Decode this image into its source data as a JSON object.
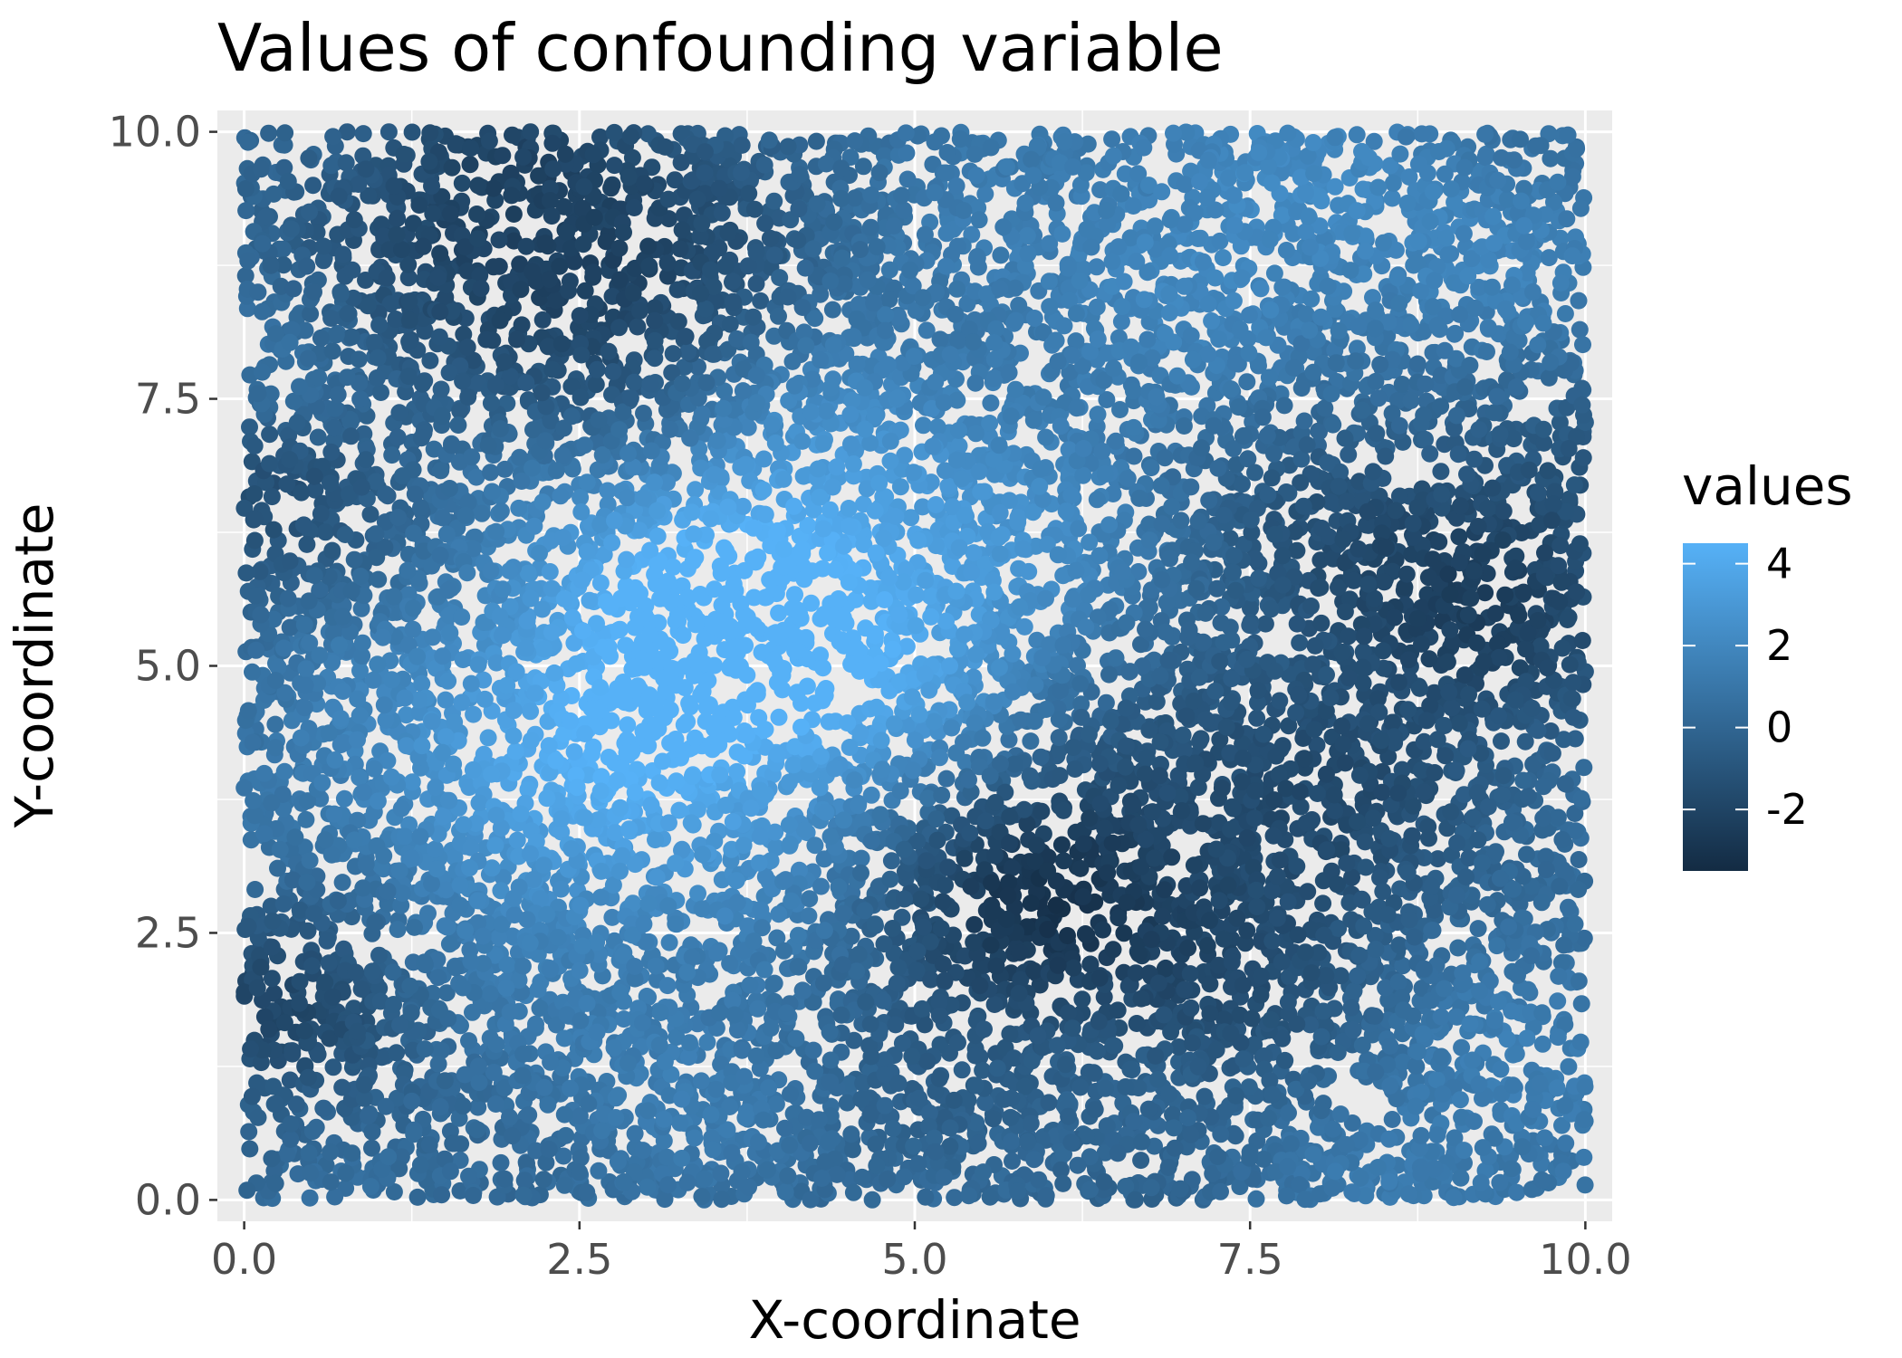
{
  "chart_data": {
    "type": "scatter",
    "title": "Values of confounding variable",
    "xlabel": "X-coordinate",
    "ylabel": "Y-coordinate",
    "xlim": [
      -0.2,
      10.2
    ],
    "ylim": [
      -0.2,
      10.2
    ],
    "x_ticks": [
      0.0,
      2.5,
      5.0,
      7.5,
      10.0
    ],
    "x_tick_labels": [
      "0.0",
      "2.5",
      "5.0",
      "7.5",
      "10.0"
    ],
    "y_ticks": [
      0.0,
      2.5,
      5.0,
      7.5,
      10.0
    ],
    "y_tick_labels": [
      "0.0",
      "2.5",
      "5.0",
      "7.5",
      "10.0"
    ],
    "grid": true,
    "panel_background": "#ebebeb",
    "point_domain": {
      "x": [
        0,
        10
      ],
      "y": [
        0,
        10
      ]
    },
    "point_count": 10000,
    "value_field": {
      "base": 0.2,
      "bumps": [
        {
          "x": 3.3,
          "y": 4.7,
          "amplitude": 4.2,
          "sigma": 1.5
        },
        {
          "x": 4.6,
          "y": 5.9,
          "amplitude": 2.4,
          "sigma": 1.4
        },
        {
          "x": 5.8,
          "y": 3.0,
          "amplitude": -3.3,
          "sigma": 1.1
        },
        {
          "x": 2.0,
          "y": 9.3,
          "amplitude": -2.0,
          "sigma": 1.1
        },
        {
          "x": 2.8,
          "y": 8.2,
          "amplitude": -1.6,
          "sigma": 0.9
        },
        {
          "x": 9.0,
          "y": 5.9,
          "amplitude": -2.4,
          "sigma": 1.1
        },
        {
          "x": 0.4,
          "y": 2.0,
          "amplitude": -2.0,
          "sigma": 0.8
        },
        {
          "x": 0.5,
          "y": 6.6,
          "amplitude": -1.6,
          "sigma": 0.9
        },
        {
          "x": 6.9,
          "y": 9.3,
          "amplitude": 1.6,
          "sigma": 1.2
        },
        {
          "x": 9.0,
          "y": 8.8,
          "amplitude": 1.4,
          "sigma": 1.0
        },
        {
          "x": 0.4,
          "y": 7.8,
          "amplitude": 1.2,
          "sigma": 0.6
        },
        {
          "x": 9.3,
          "y": 1.0,
          "amplitude": 1.4,
          "sigma": 1.2
        },
        {
          "x": 7.8,
          "y": 2.2,
          "amplitude": -1.2,
          "sigma": 1.0
        },
        {
          "x": 1.2,
          "y": 3.4,
          "amplitude": 1.0,
          "sigma": 0.9
        },
        {
          "x": 8.0,
          "y": 4.0,
          "amplitude": -1.0,
          "sigma": 0.8
        },
        {
          "x": 3.0,
          "y": 1.2,
          "amplitude": 0.8,
          "sigma": 1.0
        }
      ]
    },
    "legend": {
      "title": "values",
      "position": "right",
      "ticks": [
        4,
        2,
        0,
        -2
      ],
      "tick_labels": [
        "4",
        "2",
        "0",
        "-2"
      ],
      "range": [
        -3.5,
        4.5
      ],
      "color_low": "#132b43",
      "color_high": "#56b1f7"
    }
  }
}
